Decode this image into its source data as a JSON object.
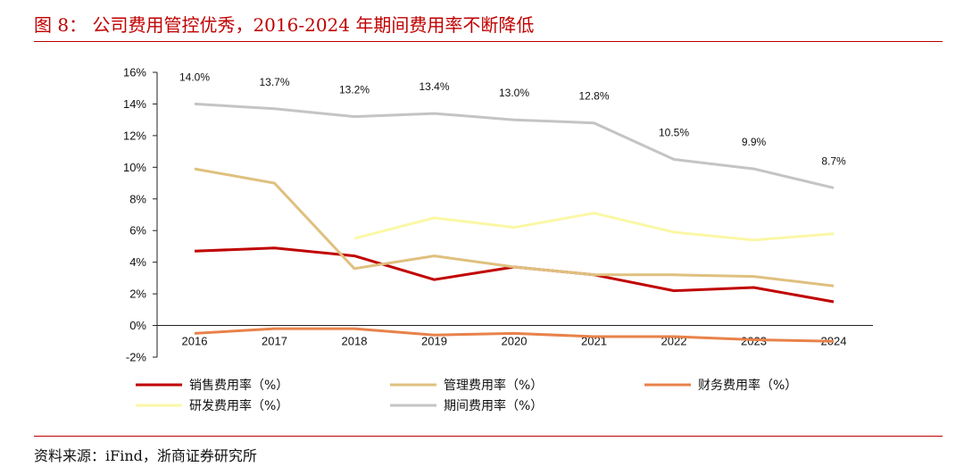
{
  "header": {
    "title": "图 8：  公司费用管控优秀，2016-2024 年期间费用率不断降低"
  },
  "footer": {
    "source": "资料来源：iFind，浙商证券研究所"
  },
  "chart_data": {
    "type": "line",
    "title": "",
    "xlabel": "",
    "ylabel": "",
    "ylim": [
      -2,
      16
    ],
    "yticks": [
      "16%",
      "14%",
      "12%",
      "10%",
      "8%",
      "6%",
      "4%",
      "2%",
      "0%",
      "-2%"
    ],
    "categories": [
      "2016",
      "2017",
      "2018",
      "2019",
      "2020",
      "2021",
      "2022",
      "2023",
      "2024"
    ],
    "legend_position": "bottom",
    "grid": false,
    "series": [
      {
        "name": "销售费用率（%）",
        "color": "#c00000",
        "values": [
          4.7,
          4.9,
          4.4,
          2.9,
          3.7,
          3.2,
          2.2,
          2.4,
          1.5
        ]
      },
      {
        "name": "管理费用率（%）",
        "color": "#dfc07e",
        "values": [
          9.9,
          9.0,
          3.6,
          4.4,
          3.7,
          3.2,
          3.2,
          3.1,
          2.5
        ]
      },
      {
        "name": "财务费用率（%）",
        "color": "#e8824a",
        "values": [
          -0.5,
          -0.2,
          -0.2,
          -0.6,
          -0.5,
          -0.7,
          -0.7,
          -0.9,
          -1.0
        ]
      },
      {
        "name": "研发费用率（%）",
        "color": "#fbf7a6",
        "values": [
          null,
          null,
          5.5,
          6.8,
          6.2,
          7.1,
          5.9,
          5.4,
          5.8
        ]
      },
      {
        "name": "期间费用率（%）",
        "color": "#c4c4c4",
        "values": [
          14.0,
          13.7,
          13.2,
          13.4,
          13.0,
          12.8,
          10.5,
          9.9,
          8.7
        ],
        "data_labels": [
          "14.0%",
          "13.7%",
          "13.2%",
          "13.4%",
          "13.0%",
          "12.8%",
          "10.5%",
          "9.9%",
          "8.7%"
        ]
      }
    ]
  }
}
